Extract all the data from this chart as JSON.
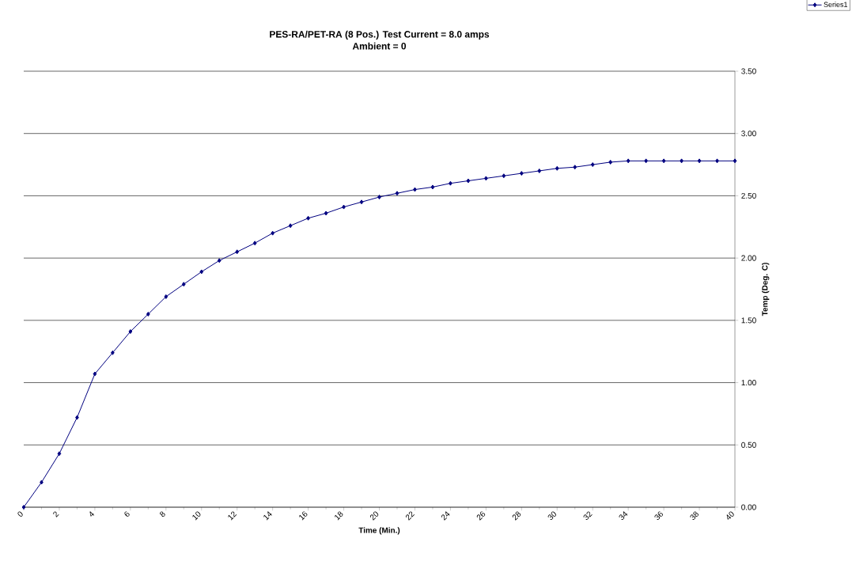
{
  "chart_data": {
    "type": "line",
    "title": "PES-RA/PET-RA (8 Pos.) Test Current = 8.0 amps",
    "subtitle": "Ambient = 0",
    "xlabel": "Time (Min.)",
    "ylabel": "Temp (Deg. C)",
    "x": [
      0,
      1,
      2,
      3,
      4,
      5,
      6,
      7,
      8,
      9,
      10,
      11,
      12,
      13,
      14,
      15,
      16,
      17,
      18,
      19,
      20,
      21,
      22,
      23,
      24,
      25,
      26,
      27,
      28,
      29,
      30,
      31,
      32,
      33,
      34,
      35,
      36,
      37,
      38,
      39,
      40
    ],
    "series": [
      {
        "name": "Series1",
        "color": "#000080",
        "values": [
          0,
          0.2,
          0.43,
          0.72,
          1.07,
          1.24,
          1.41,
          1.55,
          1.69,
          1.79,
          1.89,
          1.98,
          2.05,
          2.12,
          2.2,
          2.26,
          2.32,
          2.36,
          2.41,
          2.45,
          2.49,
          2.52,
          2.55,
          2.57,
          2.6,
          2.62,
          2.64,
          2.66,
          2.68,
          2.7,
          2.72,
          2.73,
          2.75,
          2.77,
          2.78,
          2.78,
          2.78,
          2.78,
          2.78,
          2.78,
          2.78
        ]
      }
    ],
    "xlim": [
      0,
      40
    ],
    "xticks": [
      0,
      2,
      4,
      6,
      8,
      10,
      12,
      14,
      16,
      18,
      20,
      22,
      24,
      26,
      28,
      30,
      32,
      34,
      36,
      38,
      40
    ],
    "ylim": [
      0,
      3.5
    ],
    "yticks": [
      {
        "value": 0,
        "label": "0.00"
      },
      {
        "value": 0.5,
        "label": "0.50"
      },
      {
        "value": 1,
        "label": "1.00"
      },
      {
        "value": 1.5,
        "label": "1.50"
      },
      {
        "value": 2,
        "label": "2.00"
      },
      {
        "value": 2.5,
        "label": "2.50"
      },
      {
        "value": 3,
        "label": "3.00"
      },
      {
        "value": 3.5,
        "label": "3.50"
      }
    ],
    "grid": "y",
    "legend": "top right",
    "marker": "diamond",
    "line_style": "solid"
  }
}
